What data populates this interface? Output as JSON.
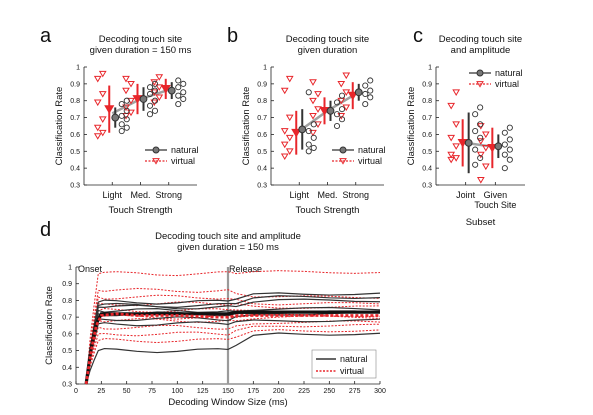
{
  "colors": {
    "natural": "#333333",
    "virtual": "#e8262b",
    "connector": "#8a8a8a",
    "release_line": "#9a9a9a"
  },
  "chart_data": [
    {
      "panel_label": "a",
      "type": "scatter",
      "title_lines": [
        "Decoding touch site",
        "given duration = 150 ms"
      ],
      "ylabel": "Classification Rate",
      "xlabel": "Touch Strength",
      "categories": [
        "Light",
        "Med.",
        "Strong"
      ],
      "ylim": [
        0.3,
        1
      ],
      "yticks": [
        "0.3",
        "0.4",
        "0.5",
        "0.6",
        "0.7",
        "0.8",
        "0.9",
        "1"
      ],
      "legend": {
        "position": "bottom-right",
        "natural": "natural",
        "virtual": "virtual"
      },
      "series": [
        {
          "key": "natural",
          "points": [
            [
              0.62,
              0.64,
              0.66,
              0.69,
              0.71,
              0.74,
              0.78,
              0.8
            ],
            [
              0.72,
              0.74,
              0.77,
              0.8,
              0.84,
              0.86,
              0.88,
              0.9
            ],
            [
              0.78,
              0.81,
              0.83,
              0.85,
              0.88,
              0.9,
              0.92
            ]
          ],
          "means": [
            0.7,
            0.81,
            0.86
          ],
          "sd": [
            0.06,
            0.07,
            0.05
          ]
        },
        {
          "key": "virtual",
          "points": [
            [
              0.59,
              0.61,
              0.64,
              0.69,
              0.79,
              0.84,
              0.93,
              0.96
            ],
            [
              0.71,
              0.73,
              0.76,
              0.8,
              0.86,
              0.9,
              0.93
            ],
            [
              0.79,
              0.82,
              0.85,
              0.88,
              0.91,
              0.94
            ]
          ],
          "means": [
            0.75,
            0.81,
            0.87
          ],
          "sd": [
            0.14,
            0.09,
            0.06
          ]
        }
      ]
    },
    {
      "panel_label": "b",
      "type": "scatter",
      "title_lines": [
        "Decoding touch site",
        "given duration"
      ],
      "ylabel": "Classification Rate",
      "xlabel": "Touch Strength",
      "categories": [
        "Light",
        "Med.",
        "Strong"
      ],
      "ylim": [
        0.3,
        1
      ],
      "yticks": [
        "0.3",
        "0.4",
        "0.5",
        "0.6",
        "0.7",
        "0.8",
        "0.9",
        "1"
      ],
      "legend": {
        "position": "bottom-right",
        "natural": "natural",
        "virtual": "virtual"
      },
      "series": [
        {
          "key": "natural",
          "points": [
            [
              0.5,
              0.52,
              0.54,
              0.58,
              0.62,
              0.66,
              0.85
            ],
            [
              0.65,
              0.69,
              0.72,
              0.75,
              0.79,
              0.83
            ],
            [
              0.78,
              0.82,
              0.84,
              0.86,
              0.89,
              0.92
            ]
          ],
          "means": [
            0.63,
            0.74,
            0.85
          ],
          "sd": [
            0.12,
            0.06,
            0.05
          ]
        },
        {
          "key": "virtual",
          "points": [
            [
              0.47,
              0.5,
              0.54,
              0.58,
              0.62,
              0.7,
              0.86,
              0.93
            ],
            [
              0.61,
              0.66,
              0.71,
              0.75,
              0.8,
              0.84,
              0.91
            ],
            [
              0.71,
              0.76,
              0.8,
              0.85,
              0.9,
              0.95
            ]
          ],
          "means": [
            0.61,
            0.74,
            0.83
          ],
          "sd": [
            0.13,
            0.08,
            0.08
          ]
        }
      ]
    },
    {
      "panel_label": "c",
      "type": "scatter",
      "title_lines": [
        "Decoding touch site",
        "and amplitude"
      ],
      "ylabel": "Classification Rate",
      "xlabel": "Subset",
      "categories": [
        "Joint",
        "Given\nTouch Site"
      ],
      "ylim": [
        0.3,
        1
      ],
      "yticks": [
        "0.3",
        "0.4",
        "0.5",
        "0.6",
        "0.7",
        "0.8",
        "0.9",
        "1"
      ],
      "legend": {
        "position": "top-right",
        "natural": "natural",
        "virtual": "virtual"
      },
      "series": [
        {
          "key": "natural",
          "points": [
            [
              0.42,
              0.46,
              0.51,
              0.58,
              0.62,
              0.66,
              0.72,
              0.76
            ],
            [
              0.4,
              0.45,
              0.48,
              0.51,
              0.54,
              0.57,
              0.61,
              0.64
            ]
          ],
          "means": [
            0.55,
            0.53
          ],
          "sd": [
            0.18,
            0.07
          ]
        },
        {
          "key": "virtual",
          "points": [
            [
              0.45,
              0.46,
              0.48,
              0.53,
              0.58,
              0.66,
              0.77,
              0.85
            ],
            [
              0.33,
              0.41,
              0.48,
              0.52,
              0.56,
              0.6,
              0.65
            ]
          ],
          "means": [
            0.55,
            0.52
          ],
          "sd": [
            0.14,
            0.12
          ]
        }
      ]
    },
    {
      "panel_label": "d",
      "type": "line",
      "title_lines": [
        "Decoding touch site and amplitude",
        "given duration = 150 ms"
      ],
      "ylabel": "Classification Rate",
      "xlabel": "Decoding Window Size (ms)",
      "xlim": [
        0,
        300
      ],
      "ylim": [
        0.3,
        1
      ],
      "xticks": [
        "0",
        "25",
        "50",
        "75",
        "100",
        "125",
        "150",
        "175",
        "200",
        "225",
        "250",
        "275",
        "300"
      ],
      "yticks": [
        "0.3",
        "0.4",
        "0.5",
        "0.6",
        "0.7",
        "0.8",
        "0.9",
        "1"
      ],
      "annotations": {
        "onset": "Onset",
        "release": "Release",
        "release_x": 150
      },
      "legend": {
        "position": "bottom-right",
        "natural": "natural",
        "virtual": "virtual"
      },
      "x": [
        10,
        15,
        20,
        25,
        40,
        60,
        100,
        140,
        150,
        160,
        200,
        250,
        300
      ],
      "natural_plateaus": [
        0.5,
        0.66,
        0.69,
        0.72,
        0.74,
        0.76,
        0.77,
        0.79
      ],
      "natural_finals": [
        0.6,
        0.68,
        0.72,
        0.73,
        0.75,
        0.8,
        0.82,
        0.84
      ],
      "virtual_plateaus": [
        0.56,
        0.6,
        0.64,
        0.68,
        0.7,
        0.74,
        0.78,
        0.82,
        0.86,
        0.96
      ],
      "virtual_finals": [
        0.62,
        0.65,
        0.67,
        0.7,
        0.71,
        0.73,
        0.76,
        0.78,
        0.82,
        0.97
      ],
      "natural_mean": [
        0.3,
        0.52,
        0.66,
        0.72,
        0.72,
        0.72,
        0.72,
        0.72,
        0.72,
        0.73,
        0.73,
        0.73,
        0.73
      ],
      "virtual_mean": [
        0.3,
        0.5,
        0.65,
        0.71,
        0.72,
        0.71,
        0.71,
        0.7,
        0.7,
        0.71,
        0.71,
        0.71,
        0.71
      ]
    }
  ]
}
